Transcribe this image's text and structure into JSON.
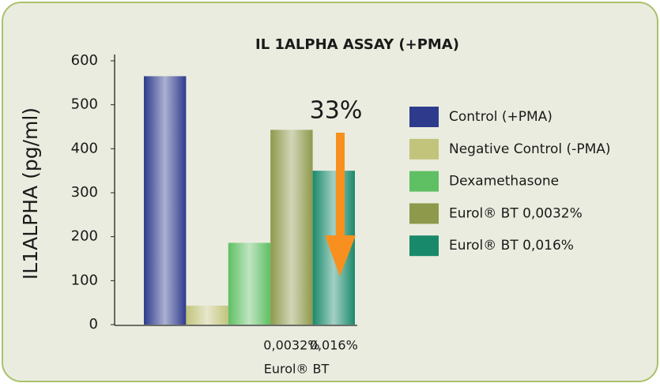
{
  "chart_data": {
    "type": "bar",
    "title": "IL 1ALPHA ASSAY (+PMA)",
    "y_label": "IL1ALPHA (pg/ml)",
    "x_label": "Eurol® BT",
    "annotation": "33%",
    "categories": [
      null,
      null,
      null,
      "0,0032%",
      "0,016%"
    ],
    "series": [
      {
        "name": "Control (+PMA)",
        "color": "#2e3b8c",
        "values": [
          565,
          null,
          null,
          null,
          null
        ]
      },
      {
        "name": "Negative Control (-PMA)",
        "color": "#c2c47c",
        "values": [
          null,
          43,
          null,
          null,
          null
        ]
      },
      {
        "name": "Dexamethasone",
        "color": "#5fbf63",
        "values": [
          null,
          null,
          186,
          null,
          null
        ]
      },
      {
        "name": "Eurol® BT 0,0032%",
        "color": "#8e994c",
        "values": [
          null,
          null,
          null,
          443,
          null
        ]
      },
      {
        "name": "Eurol® BT 0,016%",
        "color": "#19896b",
        "values": [
          null,
          null,
          null,
          null,
          350
        ]
      }
    ],
    "ylim": [
      0,
      600
    ],
    "yticks": [
      0,
      100,
      200,
      300,
      400,
      500,
      600
    ]
  }
}
